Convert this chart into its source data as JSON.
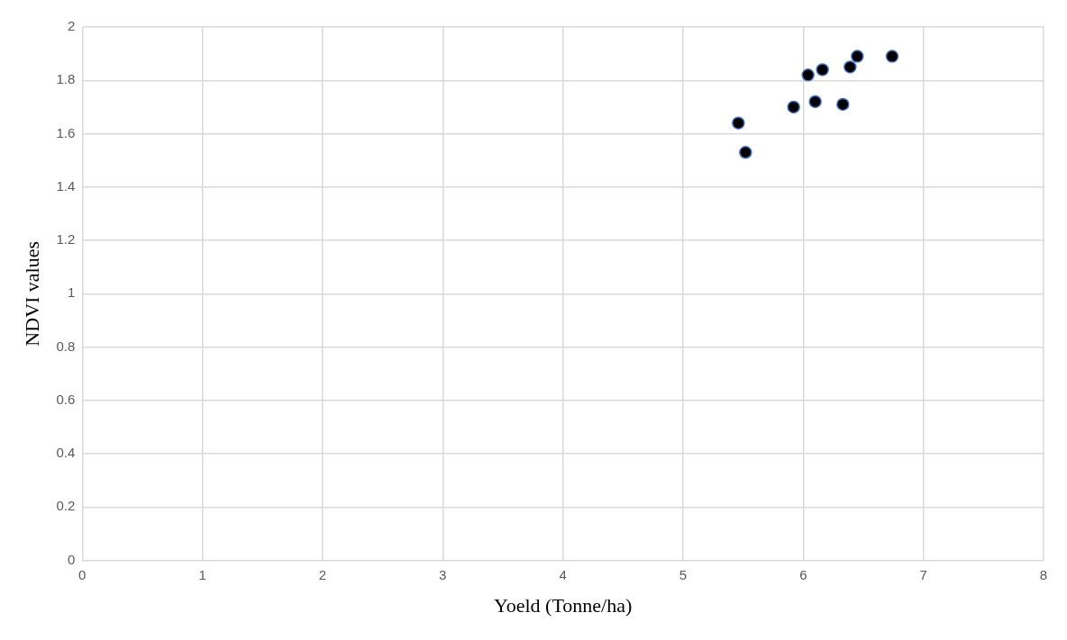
{
  "chart_data": {
    "type": "scatter",
    "xlabel": "Yoeld (Tonne/ha)",
    "ylabel": "NDVI values",
    "x": [
      5.46,
      5.52,
      5.92,
      6.04,
      6.1,
      6.16,
      6.33,
      6.39,
      6.45,
      6.74
    ],
    "series": [
      {
        "color": "#000000",
        "values": [
          1.64,
          1.53,
          1.7,
          1.82,
          1.72,
          1.84,
          1.71,
          1.85,
          1.89,
          1.89
        ]
      }
    ],
    "xlim": [
      0,
      8
    ],
    "xticks": [
      0,
      1,
      2,
      3,
      4,
      5,
      6,
      7,
      8
    ],
    "ylim": [
      0,
      2
    ],
    "yticks": [
      0,
      0.2,
      0.4,
      0.6,
      0.8,
      1,
      1.2,
      1.4,
      1.6,
      1.8,
      2
    ],
    "grid": true,
    "marker": "circle",
    "legend": false
  }
}
